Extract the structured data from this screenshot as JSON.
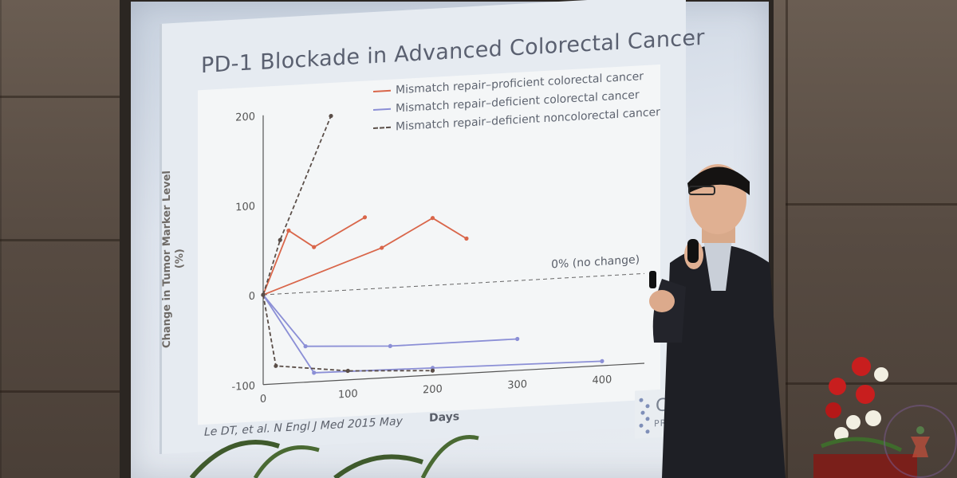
{
  "slide": {
    "title": "PD-1 Blockade in Advanced Colorectal Cancer",
    "y_axis_label_line1": "Change in Tumor Marker Level",
    "y_axis_label_line2": "(%)",
    "x_axis_label": "Days",
    "baseline_label": "0% (no change)",
    "citation": "Le DT, et al. N Engl J Med 2015 May",
    "logo_text": "CA",
    "logo_subtext": "PRECISI",
    "y_ticks": [
      "200",
      "100",
      "0",
      "-100"
    ],
    "x_ticks": [
      "0",
      "100",
      "200",
      "300",
      "400"
    ],
    "legend": [
      {
        "label": "Mismatch repair–proficient colorectal cancer",
        "color": "#d9664a",
        "style": "solid"
      },
      {
        "label": "Mismatch repair–deficient colorectal cancer",
        "color": "#8b8fd6",
        "style": "solid"
      },
      {
        "label": "Mismatch repair–deficient noncolorectal cancer",
        "color": "#5a4e48",
        "style": "dashed"
      }
    ]
  },
  "chart_data": {
    "type": "line",
    "xlabel": "Days",
    "ylabel": "Change in Tumor Marker Level (%)",
    "xlim": [
      0,
      450
    ],
    "ylim": [
      -100,
      200
    ],
    "series": [
      {
        "name": "Mismatch repair–proficient colorectal cancer",
        "x": [
          0,
          30,
          60,
          120
        ],
        "y": [
          0,
          70,
          50,
          80
        ]
      },
      {
        "name": "Mismatch repair–proficient colorectal cancer",
        "x": [
          0,
          140,
          200,
          240
        ],
        "y": [
          0,
          45,
          75,
          50
        ]
      },
      {
        "name": "Mismatch repair–deficient colorectal cancer",
        "x": [
          0,
          50,
          150,
          300
        ],
        "y": [
          0,
          -60,
          -65,
          -65
        ]
      },
      {
        "name": "Mismatch repair–deficient colorectal cancer",
        "x": [
          0,
          60,
          200,
          400
        ],
        "y": [
          0,
          -90,
          -92,
          -95
        ]
      },
      {
        "name": "Mismatch repair–deficient noncolorectal cancer",
        "x": [
          0,
          20,
          80
        ],
        "y": [
          0,
          60,
          195
        ]
      },
      {
        "name": "Mismatch repair–deficient noncolorectal cancer",
        "x": [
          0,
          15,
          100,
          200
        ],
        "y": [
          0,
          -80,
          -90,
          -95
        ]
      }
    ]
  },
  "colors": {
    "proficient_crc": "#d9664a",
    "deficient_crc": "#8b8fd6",
    "deficient_noncrc": "#5a4e48"
  }
}
